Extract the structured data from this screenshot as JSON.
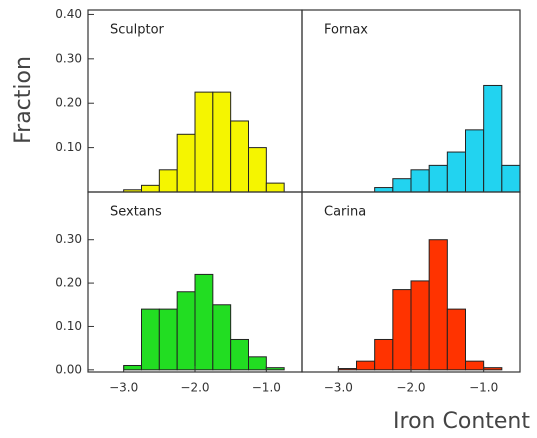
{
  "xlabel": "Iron Content",
  "ylabel": "Fraction",
  "chart_data": [
    {
      "type": "histogram",
      "title": "Sculptor",
      "color": "#f5f500",
      "bins": [
        -3.0,
        -2.75,
        -2.5,
        -2.25,
        -2.0,
        -1.75,
        -1.5,
        -1.25,
        -1.0,
        -0.75
      ],
      "values": [
        0.005,
        0.015,
        0.05,
        0.13,
        0.225,
        0.225,
        0.16,
        0.1,
        0.02
      ],
      "xlim": [
        -3.5,
        -0.5
      ],
      "ylim": [
        0,
        0.41
      ],
      "yticks": [
        {
          "value": 0.1,
          "label": "0.10"
        },
        {
          "value": 0.2,
          "label": "0.20"
        },
        {
          "value": 0.3,
          "label": "0.30"
        },
        {
          "value": 0.4,
          "label": "0.40"
        }
      ]
    },
    {
      "type": "histogram",
      "title": "Fornax",
      "color": "#22d3f0",
      "bins": [
        -2.5,
        -2.25,
        -2.0,
        -1.75,
        -1.5,
        -1.25,
        -1.0,
        -0.75,
        -0.5
      ],
      "values": [
        0.01,
        0.03,
        0.05,
        0.06,
        0.09,
        0.14,
        0.24,
        0.06
      ],
      "xlim": [
        -3.5,
        -0.5
      ],
      "ylim": [
        0,
        0.41
      ]
    },
    {
      "type": "histogram",
      "title": "Sextans",
      "color": "#22dd22",
      "bins": [
        -3.0,
        -2.75,
        -2.5,
        -2.25,
        -2.0,
        -1.75,
        -1.5,
        -1.25,
        -1.0,
        -0.75
      ],
      "values": [
        0.01,
        0.14,
        0.14,
        0.18,
        0.22,
        0.15,
        0.07,
        0.03,
        0.005
      ],
      "xlim": [
        -3.5,
        -0.5
      ],
      "ylim": [
        -0.005,
        0.41
      ],
      "xticks": [
        {
          "value": -3.0,
          "label": "−3.0"
        },
        {
          "value": -2.0,
          "label": "−2.0"
        },
        {
          "value": -1.0,
          "label": "−1.0"
        }
      ],
      "yticks": [
        {
          "value": 0.0,
          "label": "0.00"
        },
        {
          "value": 0.1,
          "label": "0.10"
        },
        {
          "value": 0.2,
          "label": "0.20"
        },
        {
          "value": 0.3,
          "label": "0.30"
        }
      ]
    },
    {
      "type": "histogram",
      "title": "Carina",
      "color": "#ff3300",
      "bins": [
        -3.0,
        -2.75,
        -2.5,
        -2.25,
        -2.0,
        -1.75,
        -1.5,
        -1.25,
        -1.0,
        -0.75
      ],
      "values": [
        0.003,
        0.02,
        0.07,
        0.185,
        0.205,
        0.3,
        0.14,
        0.02,
        0.005
      ],
      "xlim": [
        -3.5,
        -0.5
      ],
      "ylim": [
        -0.005,
        0.41
      ],
      "xticks": [
        {
          "value": -3.0,
          "label": "−3.0"
        },
        {
          "value": -2.0,
          "label": "−2.0"
        },
        {
          "value": -1.0,
          "label": "−1.0"
        }
      ]
    }
  ]
}
